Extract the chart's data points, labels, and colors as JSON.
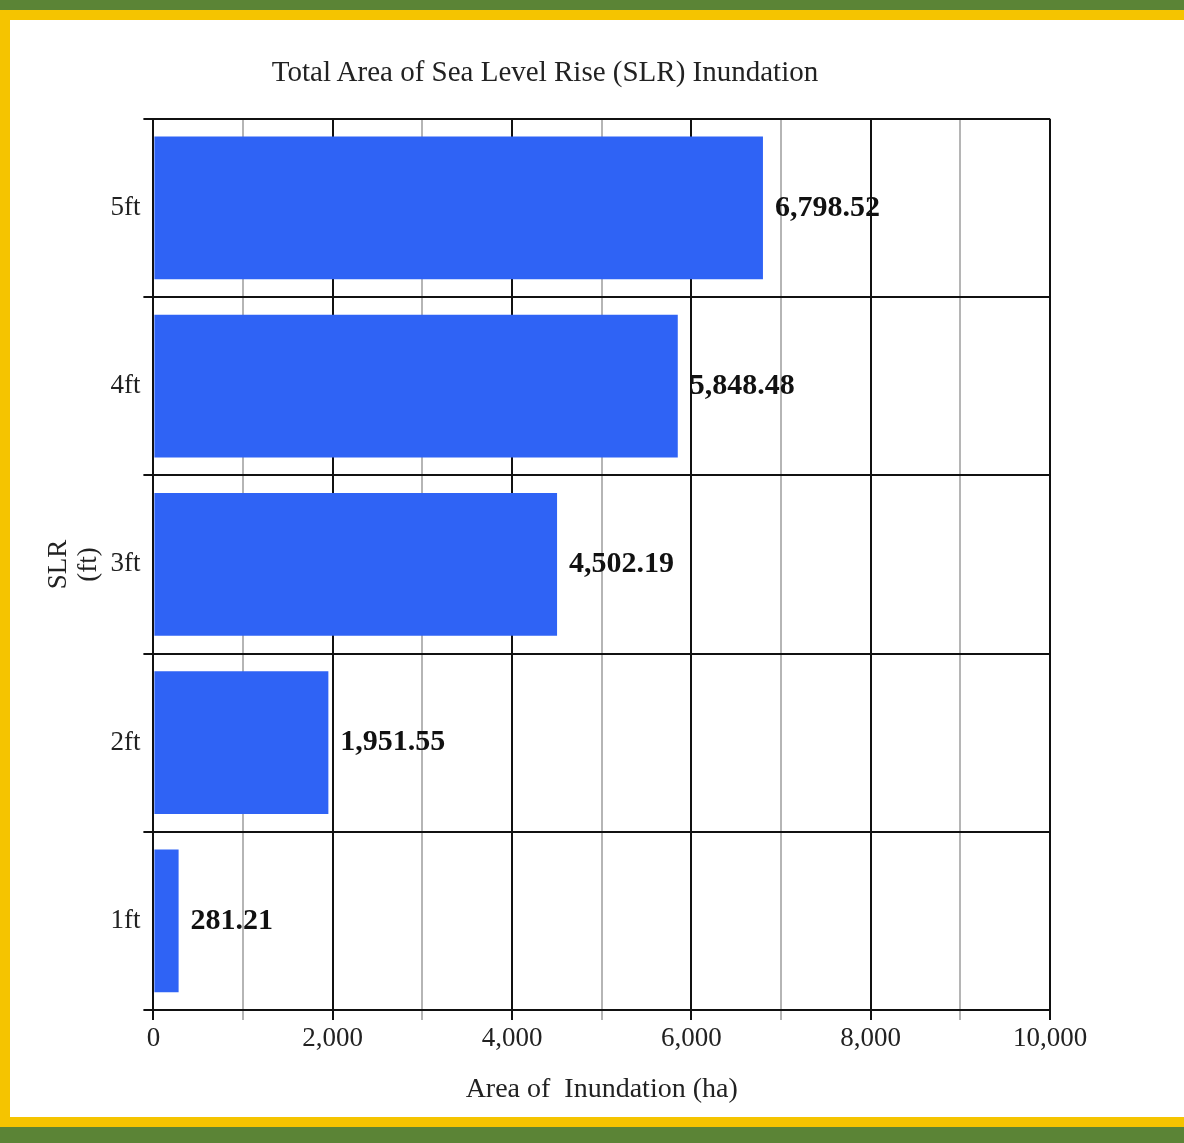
{
  "chart_data": {
    "type": "bar",
    "orientation": "horizontal",
    "title": "Total Area of Sea Level Rise (SLR) Inundation",
    "xlabel": "Area of  Inundation (ha)",
    "ylabel": "SLR\n(ft)",
    "categories": [
      "5ft",
      "4ft",
      "3ft",
      "2ft",
      "1ft"
    ],
    "values": [
      6798.52,
      5848.48,
      4502.19,
      1951.55,
      281.21
    ],
    "value_labels": [
      "6,798.52",
      "5,848.48",
      "4,502.19",
      "1,951.55",
      "281.21"
    ],
    "color": "#2f63f5",
    "xlim": [
      0,
      10000
    ],
    "xticks": [
      0,
      {
        "value": 1000,
        "label": null
      },
      {
        "value": 2000,
        "label": "2,000"
      },
      {
        "value": 3000,
        "label": null
      },
      {
        "value": 4000,
        "label": "4,000"
      },
      {
        "value": 5000,
        "label": null
      },
      {
        "value": 6000,
        "label": "6,000"
      },
      {
        "value": 7000,
        "label": null
      },
      {
        "value": 8000,
        "label": "8,000"
      },
      {
        "value": 9000,
        "label": null
      },
      {
        "value": 10000,
        "label": "10,000"
      }
    ],
    "grid": true,
    "legend": false
  }
}
